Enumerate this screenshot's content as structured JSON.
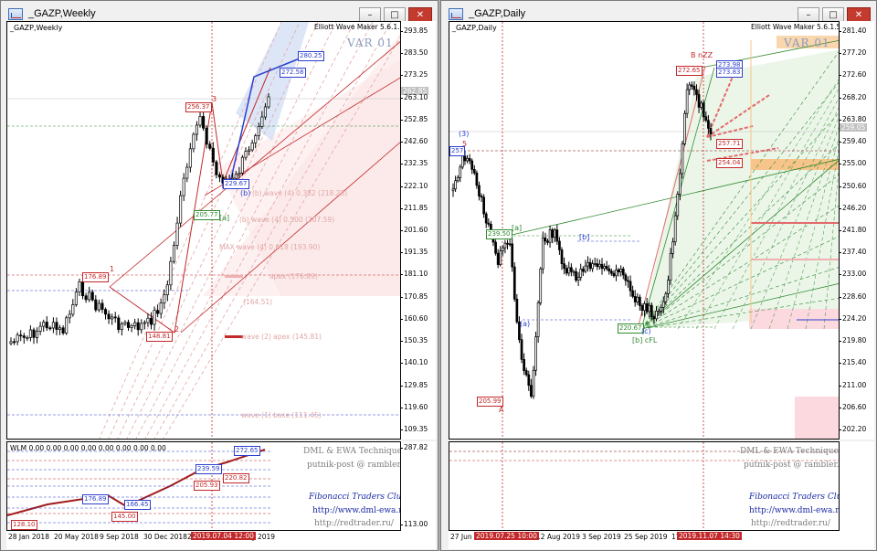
{
  "windows": {
    "weekly": {
      "title": "_GAZP,Weekly",
      "symbol_label": "_GAZP,Weekly",
      "indicator": "Elliott Wave Maker 5.6.1.5",
      "variant": "VAR 01",
      "price_tag": "262.85",
      "y_ticks": [
        "293.85",
        "283.50",
        "273.25",
        "263.10",
        "252.85",
        "242.60",
        "232.35",
        "222.10",
        "211.85",
        "201.60",
        "191.35",
        "181.10",
        "170.85",
        "160.60",
        "150.35",
        "140.10",
        "129.85",
        "119.60",
        "109.35"
      ],
      "x_ticks": [
        "28 Jan 2018",
        "20 May 2018",
        "9 Sep 2018",
        "30 Dec 2018",
        "21 Apr 2019",
        "11 Aug 2019"
      ],
      "x_highlight": "2019.07.04 12:00",
      "price_labels": {
        "p28025": "280.25",
        "p27258": "272.58",
        "p25637": "256.37",
        "p25637b": "256.37",
        "p22967": "229.67",
        "p20577": "205.77",
        "p17689": "176.89",
        "p1648": "148.81"
      },
      "wave_labels": {
        "w3": "3",
        "w1": "1",
        "w2": "2",
        "wa": "[a]",
        "wb": "(b)"
      },
      "fib_labels": {
        "f1": "(b) wave (4) 0.382 (218.28)",
        "f2": "(b) wave (4) 0.500 (207.59)",
        "f3": "MAX wave (4) 0.618 (193.90)",
        "f4": "apex (176.89)",
        "f5": "(164.51)",
        "f6": "wave (2) apex (145.81)",
        "f7": "wave (1) base (111.45)"
      },
      "wlm": {
        "header": "WLM 0.00 0.00 0.00 0.00 0.00 0.00 0.00 0.00",
        "y_ticks": [
          "287.82",
          "113.00"
        ],
        "labels": [
          "272.65",
          "239.59",
          "220.82",
          "205.93",
          "176.89",
          "166.45",
          "145.00",
          "128.10"
        ],
        "tech1": "DML & EWA Technique",
        "tech2": "putnik-post @ rambler.ru",
        "club": "Fibonacci   Traders   Club",
        "url1": "http://www.dml-ewa.ru",
        "url2": "http://redtrader.ru/"
      }
    },
    "daily": {
      "title": "_GAZP,Daily",
      "symbol_label": "_GAZP,Daily",
      "indicator": "Elliott Wave Maker 5.6.1.5",
      "variant": "VAR 01",
      "price_tag": "259.05",
      "y_ticks": [
        "281.40",
        "277.20",
        "272.60",
        "268.20",
        "263.80",
        "259.40",
        "255.00",
        "250.60",
        "246.20",
        "241.80",
        "237.40",
        "233.00",
        "228.60",
        "224.20",
        "219.80",
        "215.40",
        "211.00",
        "206.60",
        "202.20"
      ],
      "x_ticks": [
        "27 Jun 20",
        "12 Aug 2019",
        "3 Sep 2019",
        "25 Sep 2019",
        "17"
      ],
      "x_highlight_1": "2019.07.25 10:00",
      "x_highlight_2": "2019.11.07 14:30",
      "price_labels": {
        "p27265": "272.65",
        "p27398": "273.98",
        "p27383": "273.83",
        "p25771": "257.71",
        "p25404": "254.04",
        "p23950": "239.50",
        "p22067": "220.67",
        "p20599": "205.99",
        "p25700": "257"
      },
      "wave_labels": {
        "w3": "(3)",
        "w5": "5",
        "wa": "[a]",
        "wa2": "(a)",
        "wb": "[b]",
        "wc": "(c)",
        "wbcfl": "[b] cFL",
        "wbnzz": "B nZZ",
        "wA": "A"
      },
      "tech1": "DML & EWA Technique",
      "tech2": "putnik-post @ rambler.ru",
      "club": "Fibonacci   Traders   Club",
      "url1": "http://www.dml-ewa.ru",
      "url2": "http://redtrader.ru/"
    }
  },
  "colors": {
    "up_candle": "#000000",
    "down_candle": "#000000",
    "fib_red": "#c3282a",
    "fib_blue": "#2c3fcf",
    "fib_green": "#2f8a2f",
    "zone_pink": "#fbe3e3",
    "zone_blue": "#cfdcf3",
    "zone_green": "#e3f2df"
  }
}
